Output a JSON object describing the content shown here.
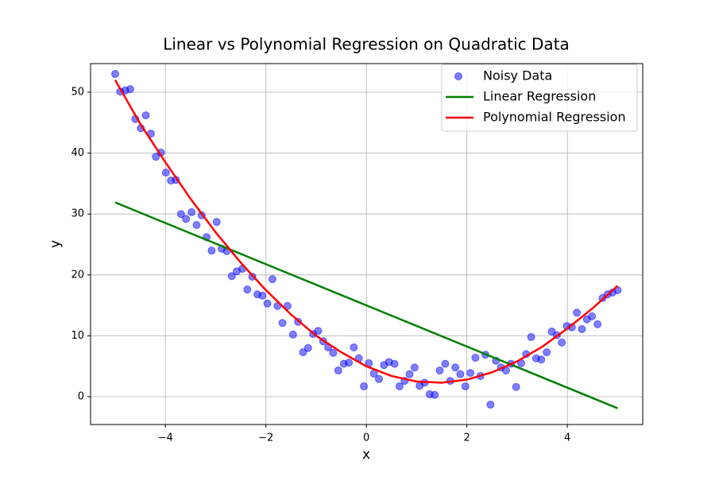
{
  "chart_data": {
    "type": "scatter",
    "title": "Linear vs Polynomial Regression on Quadratic Data",
    "x_label": "x",
    "y_label": "y",
    "xlim": [
      -5.49,
      5.5
    ],
    "ylim": [
      -4.57,
      54.7
    ],
    "xticks": [
      {
        "value": -4,
        "label": "−4"
      },
      {
        "value": -2,
        "label": "−2"
      },
      0,
      2,
      4
    ],
    "yticks": [
      0,
      10,
      20,
      30,
      40,
      50
    ],
    "grid": true,
    "legend": "upper right",
    "series": [
      {
        "name": "Noisy Data",
        "mode": "markers",
        "color": "#0000ff",
        "x": [
          -5.0,
          -4.9,
          -4.8,
          -4.7,
          -4.6,
          -4.49,
          -4.39,
          -4.29,
          -4.19,
          -4.09,
          -3.99,
          -3.89,
          -3.79,
          -3.69,
          -3.59,
          -3.48,
          -3.38,
          -3.28,
          -3.18,
          -3.08,
          -2.98,
          -2.88,
          -2.78,
          -2.68,
          -2.58,
          -2.47,
          -2.37,
          -2.27,
          -2.17,
          -2.07,
          -1.97,
          -1.87,
          -1.77,
          -1.67,
          -1.57,
          -1.46,
          -1.36,
          -1.26,
          -1.16,
          -1.06,
          -0.96,
          -0.86,
          -0.76,
          -0.66,
          -0.56,
          -0.45,
          -0.35,
          -0.25,
          -0.15,
          -0.05,
          0.05,
          0.15,
          0.25,
          0.35,
          0.45,
          0.56,
          0.66,
          0.76,
          0.86,
          0.96,
          1.06,
          1.16,
          1.26,
          1.36,
          1.46,
          1.57,
          1.67,
          1.77,
          1.87,
          1.97,
          2.07,
          2.17,
          2.27,
          2.37,
          2.47,
          2.58,
          2.68,
          2.78,
          2.88,
          2.98,
          3.08,
          3.18,
          3.28,
          3.38,
          3.48,
          3.59,
          3.69,
          3.79,
          3.89,
          3.99,
          4.09,
          4.19,
          4.29,
          4.39,
          4.49,
          4.6,
          4.7,
          4.8,
          4.9,
          5.0
        ],
        "values": [
          53.0,
          50.1,
          50.3,
          50.5,
          45.6,
          44.1,
          46.2,
          43.2,
          39.4,
          40.1,
          36.8,
          35.5,
          35.6,
          30.0,
          29.2,
          30.3,
          28.2,
          29.8,
          26.2,
          24.0,
          28.7,
          24.3,
          23.9,
          19.8,
          20.6,
          21.0,
          17.6,
          19.7,
          16.8,
          16.6,
          15.3,
          19.3,
          14.9,
          12.1,
          14.9,
          10.2,
          12.3,
          7.3,
          8.0,
          10.3,
          10.8,
          9.1,
          8.1,
          7.2,
          4.3,
          5.4,
          5.6,
          8.1,
          6.3,
          1.7,
          5.5,
          3.8,
          2.9,
          5.2,
          5.7,
          5.4,
          1.7,
          2.6,
          3.7,
          4.8,
          1.8,
          2.3,
          0.4,
          0.3,
          4.3,
          5.4,
          2.6,
          4.8,
          3.7,
          1.7,
          3.9,
          6.4,
          3.4,
          6.9,
          -1.3,
          5.9,
          4.8,
          4.3,
          5.4,
          1.6,
          5.5,
          7.0,
          9.8,
          6.3,
          6.1,
          7.3,
          10.7,
          10.1,
          8.9,
          11.6,
          11.4,
          13.8,
          11.1,
          12.7,
          13.2,
          11.9,
          16.2,
          16.8,
          17.1,
          17.5
        ]
      },
      {
        "name": "Linear Regression",
        "mode": "line",
        "color": "#008000",
        "x": [
          -5,
          5
        ],
        "values": [
          31.9,
          -1.9
        ]
      },
      {
        "name": "Polynomial Regression",
        "mode": "line",
        "color": "#ff0000",
        "x": [
          -5,
          -4.5,
          -4,
          -3.5,
          -3,
          -2.5,
          -2,
          -1.5,
          -1,
          -0.5,
          0,
          0.5,
          1,
          1.5,
          2,
          2.5,
          3,
          3.5,
          4,
          4.5,
          5
        ],
        "values": [
          52.0,
          44.8,
          38.5,
          32.5,
          27.0,
          22.0,
          17.5,
          13.5,
          10.0,
          7.3,
          5.0,
          3.4,
          2.5,
          2.3,
          2.8,
          4.0,
          5.8,
          8.2,
          11.2,
          14.5,
          18.2
        ]
      }
    ]
  }
}
